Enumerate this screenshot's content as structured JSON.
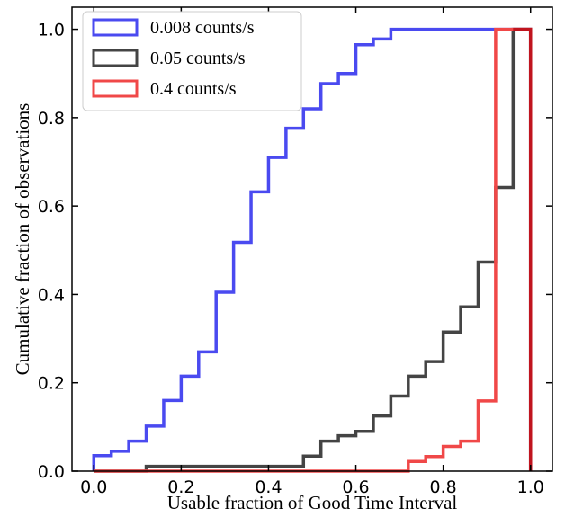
{
  "chart_data": {
    "type": "line",
    "subtype": "cumulative-step-histogram",
    "xlabel": "Usable fraction of Good Time Interval",
    "ylabel": "Cumulative fraction of observations",
    "xlim": [
      -0.05,
      1.05
    ],
    "ylim": [
      0.0,
      1.05
    ],
    "xticks": [
      0.0,
      0.2,
      0.4,
      0.6,
      0.8,
      1.0
    ],
    "xtick_labels": [
      "0.0",
      "0.2",
      "0.4",
      "0.6",
      "0.8",
      "1.0"
    ],
    "yticks": [
      0.0,
      0.2,
      0.4,
      0.6,
      0.8,
      1.0
    ],
    "ytick_labels": [
      "0.0",
      "0.2",
      "0.4",
      "0.6",
      "0.8",
      "1.0"
    ],
    "grid": false,
    "legend_position": "upper-left",
    "bin_edges": [
      0.0,
      0.04,
      0.08,
      0.12,
      0.16,
      0.2,
      0.24,
      0.28,
      0.32,
      0.36,
      0.4,
      0.44,
      0.48,
      0.52,
      0.56,
      0.6,
      0.64,
      0.68,
      0.72,
      0.76,
      0.8,
      0.84,
      0.88,
      0.92,
      0.96,
      1.0
    ],
    "series": [
      {
        "name": "0.008 counts/s",
        "color": "#4a4af0",
        "values": [
          0.035,
          0.045,
          0.068,
          0.102,
          0.16,
          0.215,
          0.27,
          0.405,
          0.518,
          0.632,
          0.71,
          0.776,
          0.82,
          0.877,
          0.9,
          0.965,
          0.978,
          1.0,
          1.0,
          1.0,
          1.0,
          1.0,
          1.0,
          1.0,
          1.0
        ]
      },
      {
        "name": "0.05 counts/s",
        "color": "#444444",
        "values": [
          0.0,
          0.0,
          0.0,
          0.011,
          0.011,
          0.011,
          0.011,
          0.011,
          0.011,
          0.011,
          0.011,
          0.011,
          0.034,
          0.068,
          0.08,
          0.09,
          0.125,
          0.17,
          0.215,
          0.248,
          0.315,
          0.372,
          0.473,
          0.642,
          1.0
        ]
      },
      {
        "name": "0.4 counts/s",
        "color": "#f04848",
        "values": [
          0.0,
          0.0,
          0.0,
          0.0,
          0.0,
          0.0,
          0.0,
          0.0,
          0.0,
          0.0,
          0.0,
          0.0,
          0.0,
          0.0,
          0.0,
          0.0,
          0.0,
          0.0,
          0.022,
          0.033,
          0.056,
          0.068,
          0.159,
          1.0,
          1.0
        ]
      }
    ],
    "overlap_color": "#c0141e"
  }
}
